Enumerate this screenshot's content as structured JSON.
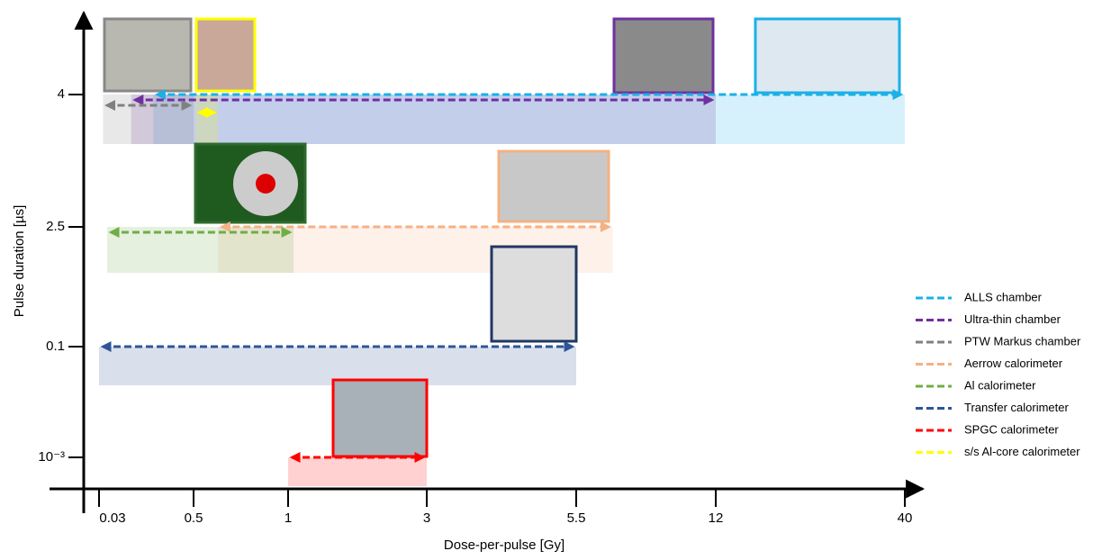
{
  "chart_data": {
    "type": "range",
    "x_label": "Dose-per-pulse [Gy]",
    "y_label": "Pulse duration [µs]",
    "xticks": [
      0.03,
      0.5,
      1,
      3,
      5.5,
      12,
      40
    ],
    "yticks": [
      {
        "value": 0.001,
        "label": "10⁻³"
      },
      0.1,
      2.5,
      4
    ],
    "series": [
      {
        "name": "ALLS chamber",
        "color": "#1ab0e8",
        "level": 4,
        "values": [
          0.3,
          40
        ]
      },
      {
        "name": "Ultra-thin chamber",
        "color": "#7030a0",
        "level": 4,
        "values": [
          0.19,
          12
        ]
      },
      {
        "name": "PTW Markus chamber",
        "color": "#808080",
        "level": 4,
        "values": [
          0.05,
          0.5
        ]
      },
      {
        "name": "Aerrow calorimeter",
        "color": "#f4b183",
        "level": 2.5,
        "values": [
          0.63,
          7.2
        ]
      },
      {
        "name": "Al calorimeter",
        "color": "#70ad47",
        "level": 2.5,
        "values": [
          0.07,
          1.08
        ]
      },
      {
        "name": "Transfer calorimeter",
        "color": "#2f5597",
        "level": 0.1,
        "values": [
          0.03,
          5.5
        ]
      },
      {
        "name": "SPGC calorimeter",
        "color": "#ff0000",
        "level": 0.001,
        "values": [
          1,
          3
        ]
      },
      {
        "name": "s/s Al-core calorimeter",
        "color": "#ffff00",
        "level": 4,
        "values": [
          0.51,
          0.63
        ]
      }
    ]
  }
}
